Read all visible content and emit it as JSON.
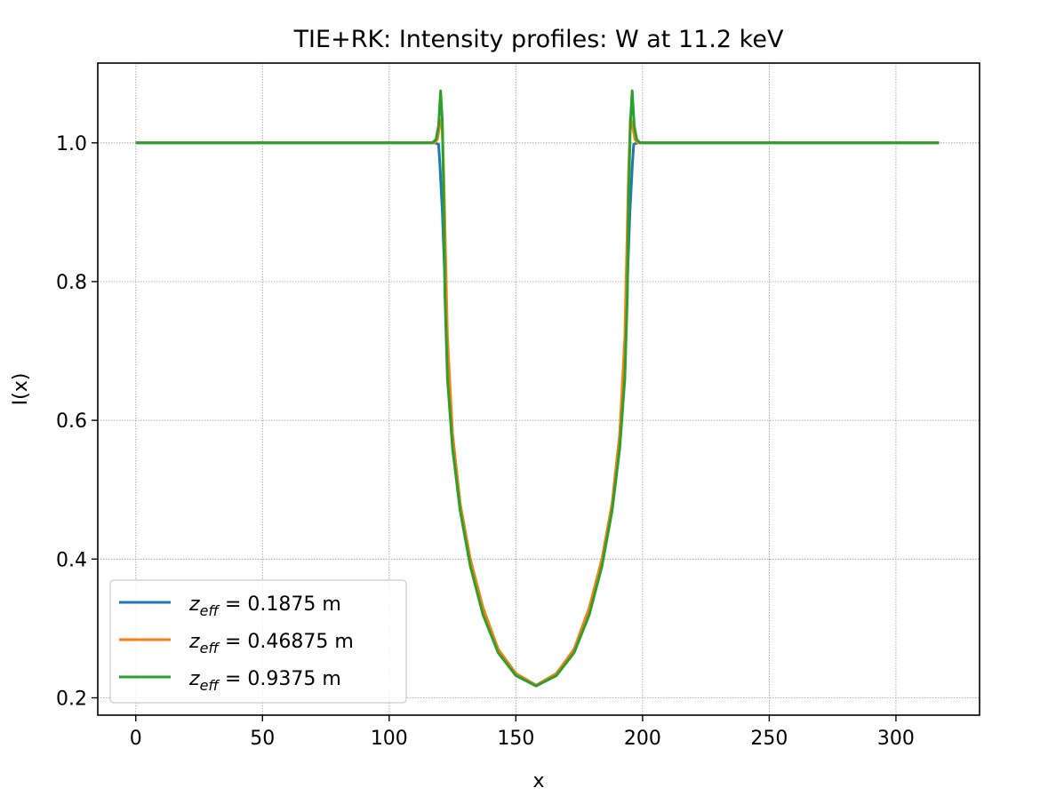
{
  "chart_data": {
    "type": "line",
    "title": "TIE+RK: Intensity profiles: W at 11.2 keV",
    "xlabel": "x",
    "ylabel": "I(x)",
    "xlim": [
      -15,
      333
    ],
    "ylim": [
      0.175,
      1.115
    ],
    "xticks": [
      0,
      50,
      100,
      150,
      200,
      250,
      300
    ],
    "yticks": [
      0.2,
      0.4,
      0.6,
      0.8,
      1.0
    ],
    "xtick_labels": [
      "0",
      "50",
      "100",
      "150",
      "200",
      "250",
      "300"
    ],
    "ytick_labels": [
      "0.2",
      "0.4",
      "0.6",
      "0.8",
      "1.0"
    ],
    "grid": true,
    "legend_position": "lower-left",
    "series": [
      {
        "name_prefix": "z",
        "name_subscript": "eff",
        "name_value": " = 0.1875 m",
        "color": "#1f77b4",
        "x": [
          0,
          118,
          119.5,
          120,
          121,
          123,
          125,
          128,
          132,
          137,
          143,
          150,
          158,
          166,
          173,
          179,
          184,
          188,
          191,
          193,
          195,
          196,
          196.5,
          198,
          317
        ],
        "y": [
          1.0,
          1.0,
          0.998,
          0.97,
          0.9,
          0.7,
          0.58,
          0.48,
          0.4,
          0.33,
          0.27,
          0.235,
          0.218,
          0.235,
          0.27,
          0.33,
          0.4,
          0.48,
          0.58,
          0.7,
          0.9,
          0.97,
          0.998,
          1.0,
          1.0
        ]
      },
      {
        "name_prefix": "z",
        "name_subscript": "eff",
        "name_value": " = 0.46875 m",
        "color": "#ff7f0e",
        "x": [
          0,
          118,
          119,
          120,
          120.8,
          121.5,
          123,
          125,
          128,
          132,
          137,
          143,
          150,
          158,
          166,
          173,
          179,
          184,
          188,
          191,
          193,
          194.5,
          195.2,
          196,
          197,
          198,
          317
        ],
        "y": [
          1.0,
          1.0,
          1.005,
          1.025,
          1.035,
          0.96,
          0.72,
          0.58,
          0.48,
          0.4,
          0.33,
          0.27,
          0.235,
          0.218,
          0.235,
          0.27,
          0.33,
          0.4,
          0.48,
          0.58,
          0.72,
          0.96,
          1.035,
          1.025,
          1.005,
          1.0,
          1.0
        ]
      },
      {
        "name_prefix": "z",
        "name_subscript": "eff",
        "name_value": " = 0.9375 m",
        "color": "#2ca02c",
        "x": [
          0,
          117,
          118.5,
          119.5,
          120.3,
          121,
          121.5,
          122,
          123,
          125,
          128,
          132,
          137,
          143,
          150,
          158,
          166,
          173,
          179,
          184,
          188,
          191,
          193,
          194,
          194.5,
          195.2,
          195.9,
          196.7,
          197.7,
          199,
          317
        ],
        "y": [
          1.0,
          1.0,
          1.005,
          1.025,
          1.075,
          1.03,
          0.92,
          0.78,
          0.66,
          0.56,
          0.47,
          0.39,
          0.32,
          0.265,
          0.232,
          0.217,
          0.232,
          0.265,
          0.32,
          0.39,
          0.47,
          0.56,
          0.66,
          0.78,
          0.92,
          1.03,
          1.075,
          1.025,
          1.005,
          1.0,
          1.0
        ]
      }
    ]
  }
}
